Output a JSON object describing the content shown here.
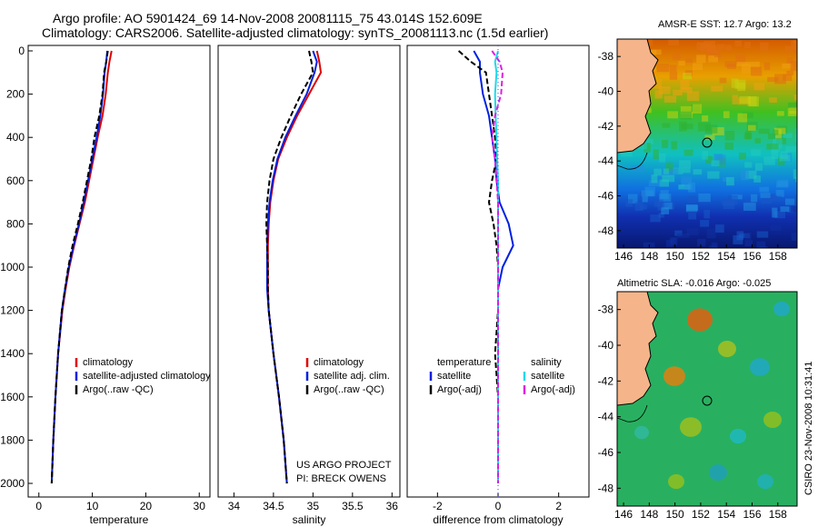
{
  "header": {
    "line1": "Argo profile: AO 5901424_69 14-Nov-2008 20081115_75 43.014S 152.609E",
    "line2": "Climatology: CARS2006. Satellite-adjusted climatology: synTS_20081113.nc (1.5d earlier)"
  },
  "sst_title": "AMSR-E SST: 12.7 Argo: 13.2",
  "sla_title": "Altimetric SLA: -0.016 Argo: -0.025",
  "credit": "CSIRO 23-Nov-2008 10:31:41",
  "project_note": [
    "US ARGO PROJECT",
    "PI: BRECK OWENS"
  ],
  "colors": {
    "climatology": "#e00000",
    "satellite": "#0020e0",
    "argo": "#000000",
    "sat_salinity": "#20d8e8",
    "argo_salinity": "#e020e0"
  },
  "chart_data": [
    {
      "type": "line",
      "title": "",
      "xlabel": "temperature",
      "ylabel": "",
      "xlim": [
        -2,
        32
      ],
      "ylim": [
        2050,
        0
      ],
      "xticks": [
        "0",
        "10",
        "20",
        "30"
      ],
      "yticks": [
        "0",
        "200",
        "400",
        "600",
        "800",
        "1000",
        "1200",
        "1400",
        "1600",
        "1800",
        "2000"
      ],
      "legend": [
        "climatology",
        "satellite-adjusted climatology",
        "Argo(..raw -QC)"
      ],
      "depth": [
        0,
        50,
        100,
        200,
        300,
        400,
        500,
        600,
        700,
        800,
        900,
        1000,
        1100,
        1200,
        1400,
        1600,
        1800,
        2000
      ],
      "series": [
        {
          "name": "climatology",
          "values": [
            13.6,
            13.2,
            12.9,
            12.5,
            11.9,
            11.0,
            10.2,
            9.4,
            8.6,
            7.6,
            6.6,
            5.7,
            5.0,
            4.4,
            3.6,
            3.1,
            2.7,
            2.4
          ]
        },
        {
          "name": "satellite-adjusted climatology",
          "values": [
            12.8,
            12.6,
            12.3,
            12.0,
            11.5,
            10.8,
            10.0,
            9.2,
            8.4,
            7.5,
            6.5,
            5.6,
            4.9,
            4.3,
            3.6,
            3.1,
            2.7,
            2.4
          ]
        },
        {
          "name": "Argo(..raw -QC)",
          "values": [
            12.9,
            12.6,
            12.2,
            11.9,
            11.3,
            10.4,
            9.8,
            9.0,
            8.2,
            7.3,
            6.3,
            5.5,
            4.9,
            4.3,
            3.6,
            3.1,
            2.7,
            2.4
          ]
        }
      ]
    },
    {
      "type": "line",
      "title": "",
      "xlabel": "salinity",
      "ylabel": "",
      "xlim": [
        33.8,
        36.1
      ],
      "ylim": [
        2050,
        0
      ],
      "xticks": [
        "34",
        "34.5",
        "35",
        "35.5",
        "36"
      ],
      "legend": [
        "climatology",
        "satellite adj. clim.",
        "Argo(..raw -QC)"
      ],
      "depth": [
        0,
        50,
        100,
        200,
        300,
        400,
        500,
        600,
        700,
        800,
        900,
        1000,
        1100,
        1200,
        1400,
        1600,
        1800,
        2000
      ],
      "series": [
        {
          "name": "climatology",
          "values": [
            35.05,
            35.08,
            35.1,
            34.95,
            34.8,
            34.67,
            34.56,
            34.5,
            34.46,
            34.44,
            34.43,
            34.43,
            34.43,
            34.44,
            34.5,
            34.57,
            34.63,
            34.67
          ]
        },
        {
          "name": "satellite adj. clim.",
          "values": [
            35.0,
            35.05,
            35.02,
            34.92,
            34.78,
            34.65,
            34.55,
            34.49,
            34.45,
            34.43,
            34.42,
            34.42,
            34.42,
            34.44,
            34.5,
            34.57,
            34.63,
            34.67
          ]
        },
        {
          "name": "Argo(..raw -QC)",
          "values": [
            34.95,
            34.98,
            35.0,
            34.85,
            34.72,
            34.6,
            34.5,
            34.45,
            34.42,
            34.41,
            34.42,
            34.43,
            34.43,
            34.44,
            34.5,
            34.57,
            34.63,
            34.67
          ]
        }
      ]
    },
    {
      "type": "line",
      "title": "",
      "xlabel": "difference from climatology",
      "ylabel": "",
      "xlim": [
        -3,
        3
      ],
      "ylim": [
        2050,
        0
      ],
      "xticks": [
        "-2",
        "0",
        "2"
      ],
      "legend": [
        "temperature",
        "satellite",
        "Argo(-adj)",
        "salinity",
        "satellite",
        "Argo(-adj)"
      ],
      "depth": [
        0,
        50,
        100,
        200,
        300,
        400,
        500,
        600,
        700,
        800,
        900,
        1000,
        1100,
        1200,
        1400,
        1600,
        1800,
        2000
      ],
      "series": [
        {
          "name": "temperature satellite",
          "values": [
            -0.8,
            -0.6,
            -0.6,
            -0.5,
            -0.3,
            -0.2,
            -0.1,
            -0.05,
            0.05,
            0.35,
            0.5,
            0.15,
            0.0,
            0.0,
            0.0,
            0.0,
            0.0,
            0.0
          ]
        },
        {
          "name": "temperature Argo(-adj)",
          "values": [
            -1.3,
            -0.9,
            -0.4,
            -0.3,
            -0.2,
            -0.1,
            -0.05,
            -0.2,
            -0.3,
            -0.15,
            -0.05,
            0.0,
            0.0,
            0.0,
            -0.1,
            0.0,
            0.0,
            0.0
          ]
        },
        {
          "name": "salinity satellite",
          "values": [
            0.0,
            -0.1,
            -0.05,
            -0.1,
            -0.08,
            -0.05,
            -0.03,
            0.0,
            0.0,
            0.0,
            0.0,
            0.0,
            0.0,
            0.0,
            0.0,
            0.0,
            0.0,
            0.0
          ]
        },
        {
          "name": "salinity Argo(-adj)",
          "values": [
            -0.2,
            0.05,
            0.15,
            0.1,
            -0.1,
            -0.2,
            -0.1,
            -0.05,
            0.0,
            0.0,
            0.0,
            0.0,
            0.0,
            0.0,
            0.0,
            0.0,
            0.0,
            0.0
          ]
        }
      ]
    },
    {
      "type": "heatmap",
      "title": "AMSR-E SST: 12.7 Argo: 13.2",
      "xticks": [
        "146",
        "148",
        "150",
        "152",
        "154",
        "156",
        "158"
      ],
      "yticks": [
        "-38",
        "-40",
        "-42",
        "-44",
        "-46",
        "-48"
      ],
      "xlim": [
        145.5,
        159.5
      ],
      "ylim": [
        -49,
        -37
      ]
    },
    {
      "type": "heatmap",
      "title": "Altimetric SLA: -0.016 Argo: -0.025",
      "xticks": [
        "146",
        "148",
        "150",
        "152",
        "154",
        "156",
        "158"
      ],
      "yticks": [
        "-38",
        "-40",
        "-42",
        "-44",
        "-46",
        "-48"
      ],
      "xlim": [
        145.5,
        159.5
      ],
      "ylim": [
        -49,
        -37
      ]
    }
  ]
}
